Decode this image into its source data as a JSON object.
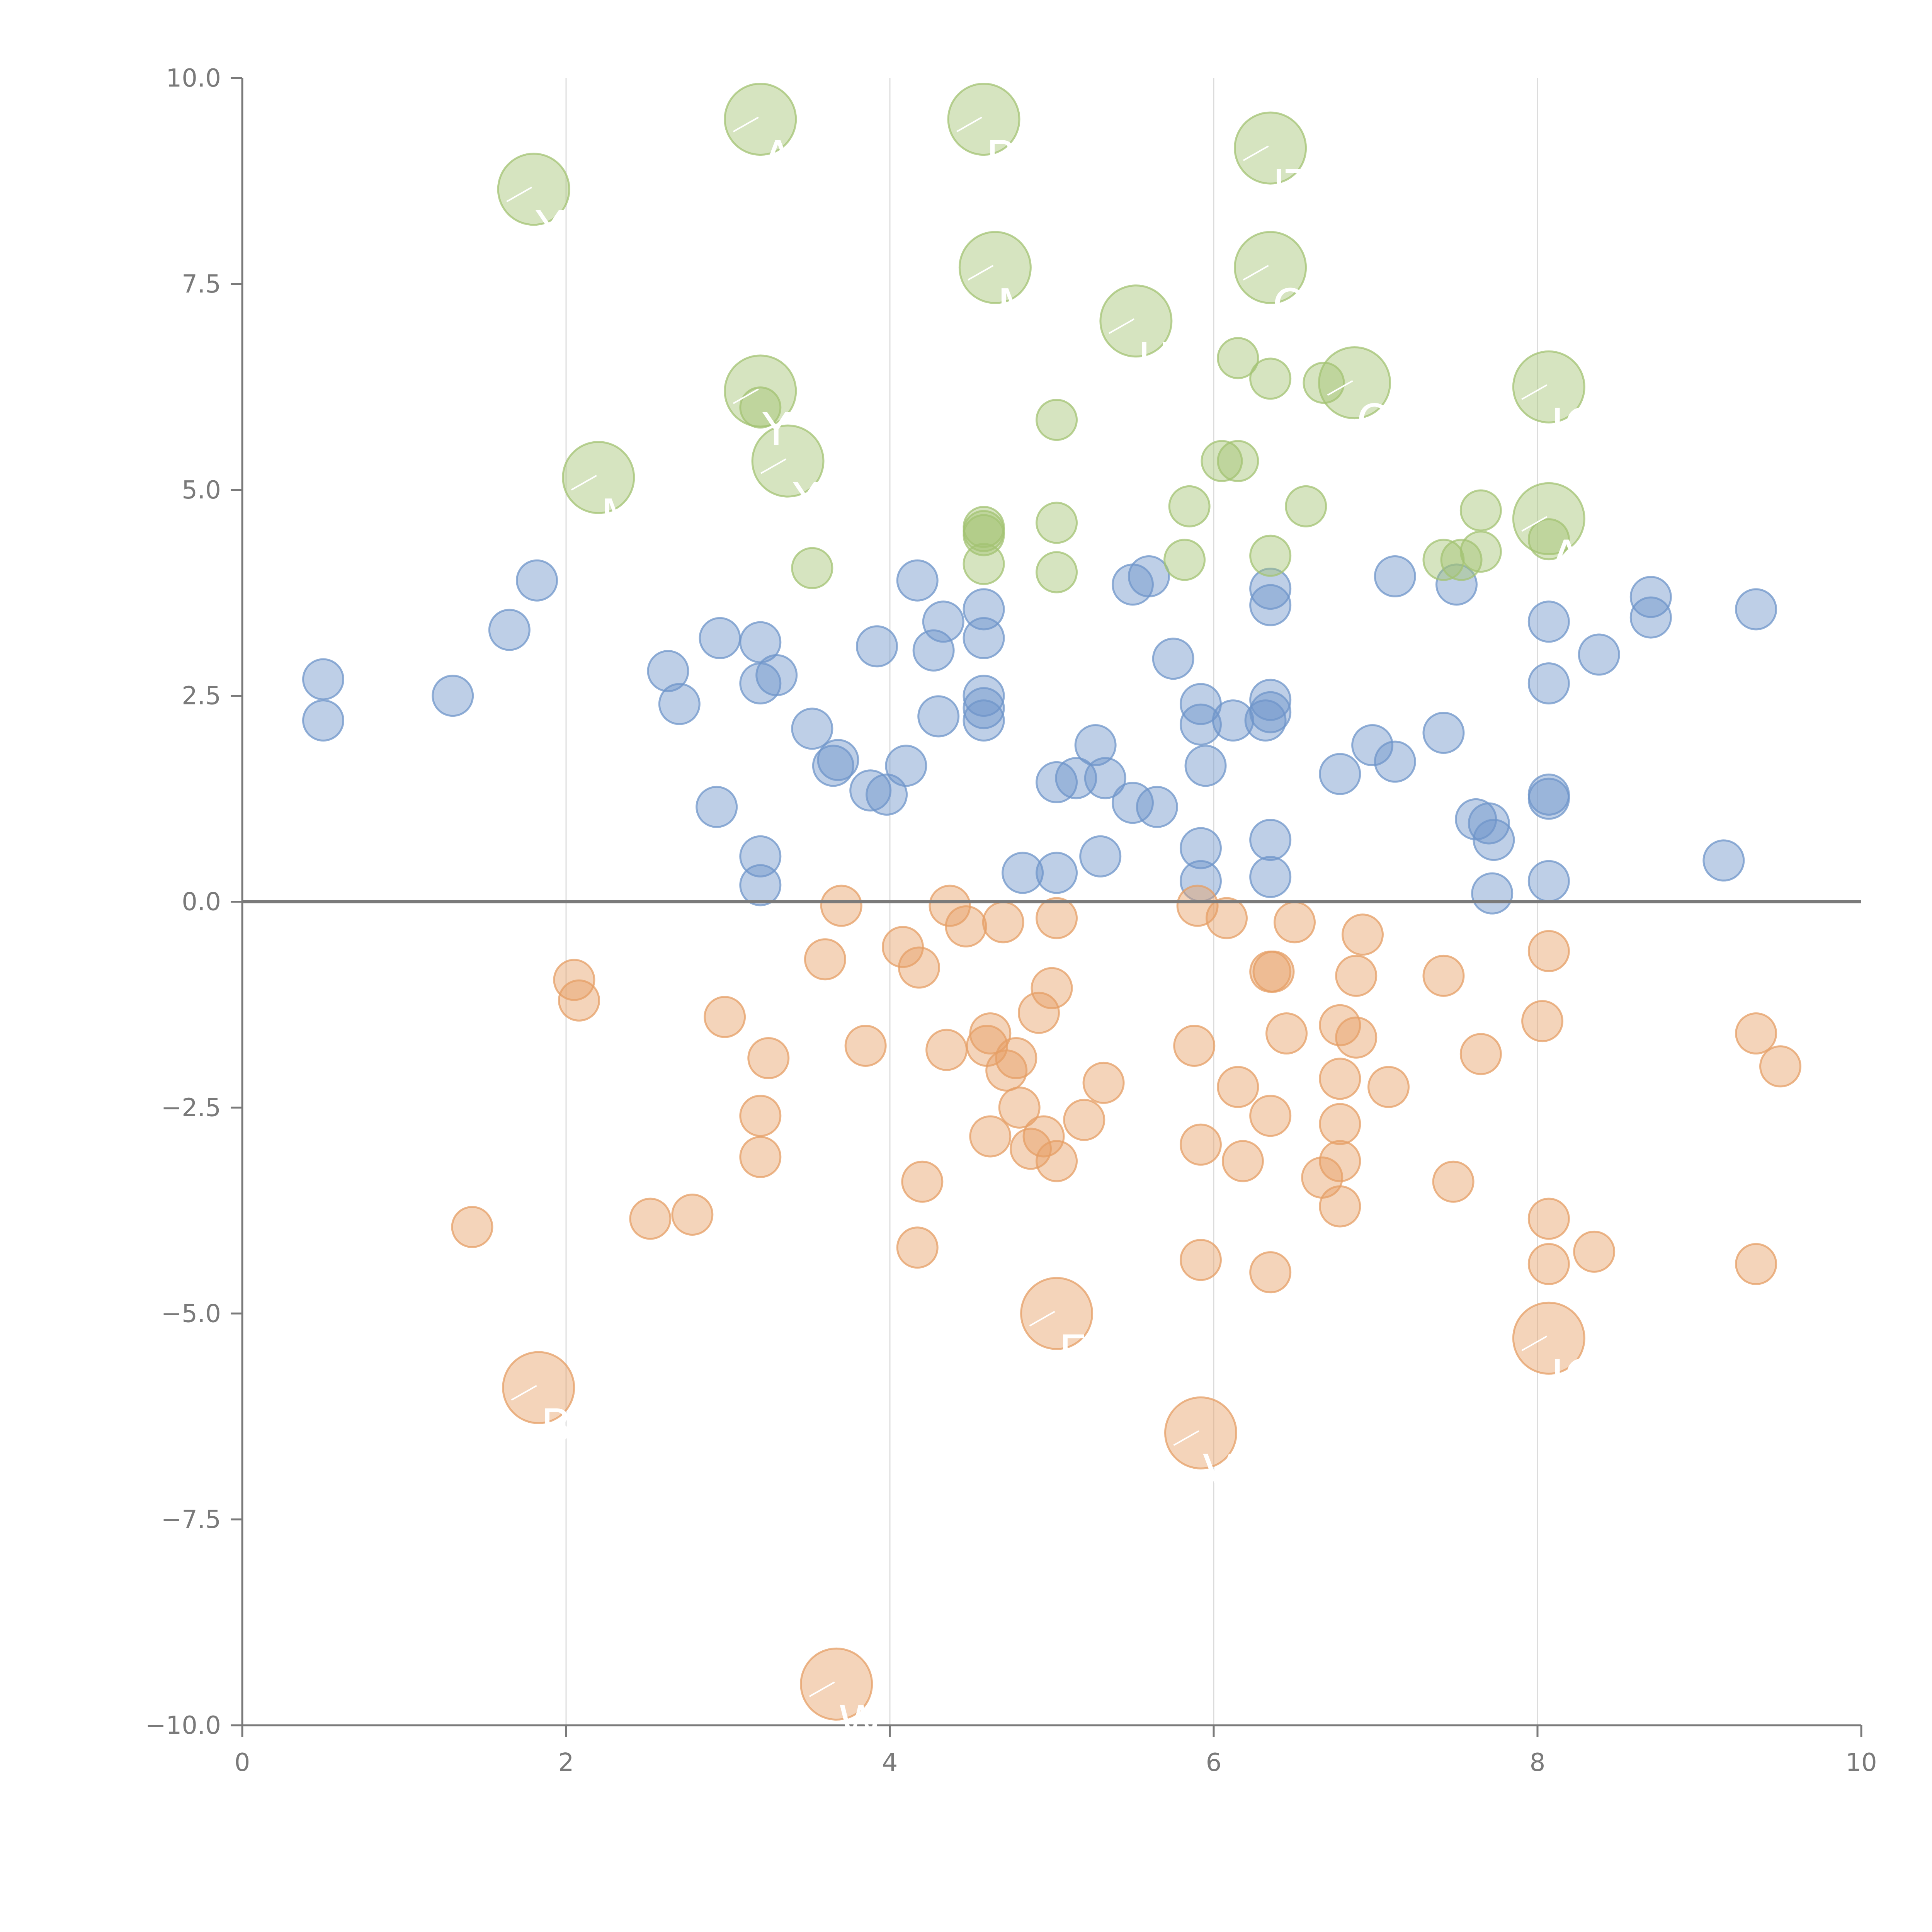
{
  "chart_data": {
    "type": "scatter",
    "title": "",
    "xlabel": "",
    "ylabel": "",
    "xlim": [
      0,
      10
    ],
    "ylim": [
      -10,
      10
    ],
    "xticks": [
      0,
      2,
      4,
      6,
      8,
      10
    ],
    "yticks": [
      10,
      7.5,
      5,
      2.5,
      0,
      -2.5,
      -5,
      -7.5,
      -10
    ],
    "xtick_labels": [
      "0",
      "2",
      "4",
      "6",
      "8",
      "10"
    ],
    "ytick_labels": [
      "10.0",
      "7.5",
      "5.0",
      "2.5",
      "0.0",
      "−2.5",
      "−5.0",
      "−7.5",
      "−10.0"
    ],
    "vertical_gridlines": [
      2,
      4,
      6,
      8
    ],
    "reference_line_y": 0,
    "series": [
      {
        "name": "positive-small",
        "color": "#6f95c9",
        "size": "small",
        "points": [
          [
            0.5,
            2.7
          ],
          [
            0.5,
            2.2
          ],
          [
            1.3,
            2.5
          ],
          [
            1.65,
            3.3
          ],
          [
            1.82,
            3.9
          ],
          [
            2.63,
            2.8
          ],
          [
            2.7,
            2.4
          ],
          [
            2.95,
            3.2
          ],
          [
            2.93,
            1.15
          ],
          [
            3.2,
            3.15
          ],
          [
            3.2,
            2.65
          ],
          [
            3.3,
            2.75
          ],
          [
            3.2,
            0.55
          ],
          [
            3.2,
            0.2
          ],
          [
            3.52,
            2.1
          ],
          [
            3.65,
            1.65
          ],
          [
            3.68,
            1.72
          ],
          [
            3.88,
            1.35
          ],
          [
            3.92,
            3.1
          ],
          [
            3.98,
            1.3
          ],
          [
            4.1,
            1.65
          ],
          [
            4.17,
            3.9
          ],
          [
            4.27,
            3.05
          ],
          [
            4.3,
            2.25
          ],
          [
            4.33,
            3.4
          ],
          [
            4.58,
            3.55
          ],
          [
            4.58,
            3.2
          ],
          [
            4.58,
            2.5
          ],
          [
            4.58,
            2.35
          ],
          [
            4.58,
            2.2
          ],
          [
            4.82,
            0.35
          ],
          [
            5.03,
            1.45
          ],
          [
            5.03,
            0.35
          ],
          [
            5.15,
            1.5
          ],
          [
            5.27,
            1.9
          ],
          [
            5.33,
            1.5
          ],
          [
            5.3,
            0.55
          ],
          [
            5.5,
            3.85
          ],
          [
            5.5,
            1.2
          ],
          [
            5.6,
            3.95
          ],
          [
            5.65,
            1.15
          ],
          [
            5.75,
            2.95
          ],
          [
            5.92,
            2.4
          ],
          [
            5.92,
            2.15
          ],
          [
            5.92,
            0.65
          ],
          [
            5.92,
            0.25
          ],
          [
            5.95,
            1.65
          ],
          [
            6.12,
            2.2
          ],
          [
            6.32,
            2.2
          ],
          [
            6.35,
            3.8
          ],
          [
            6.35,
            3.6
          ],
          [
            6.35,
            2.45
          ],
          [
            6.35,
            2.3
          ],
          [
            6.35,
            0.75
          ],
          [
            6.35,
            0.3
          ],
          [
            6.78,
            1.55
          ],
          [
            6.98,
            1.9
          ],
          [
            7.12,
            3.95
          ],
          [
            7.12,
            1.7
          ],
          [
            7.42,
            2.05
          ],
          [
            7.5,
            3.85
          ],
          [
            7.62,
            1.0
          ],
          [
            7.7,
            0.95
          ],
          [
            7.73,
            0.75
          ],
          [
            7.72,
            0.1
          ],
          [
            8.07,
            3.4
          ],
          [
            8.07,
            2.65
          ],
          [
            8.07,
            1.3
          ],
          [
            8.07,
            1.25
          ],
          [
            8.07,
            0.25
          ],
          [
            8.38,
            3.0
          ],
          [
            8.7,
            3.7
          ],
          [
            8.7,
            3.45
          ],
          [
            9.15,
            0.5
          ],
          [
            9.35,
            3.55
          ]
        ]
      },
      {
        "name": "negative-small",
        "color": "#e69f66",
        "size": "small",
        "points": [
          [
            1.42,
            -3.95
          ],
          [
            2.05,
            -0.95
          ],
          [
            2.08,
            -1.2
          ],
          [
            2.52,
            -3.85
          ],
          [
            2.78,
            -3.8
          ],
          [
            2.98,
            -1.4
          ],
          [
            3.2,
            -2.6
          ],
          [
            3.2,
            -3.1
          ],
          [
            3.25,
            -1.9
          ],
          [
            3.6,
            -0.7
          ],
          [
            3.7,
            -0.05
          ],
          [
            3.85,
            -1.75
          ],
          [
            4.08,
            -0.55
          ],
          [
            4.18,
            -0.8
          ],
          [
            4.17,
            -4.2
          ],
          [
            4.2,
            -3.4
          ],
          [
            4.35,
            -1.8
          ],
          [
            4.37,
            -0.05
          ],
          [
            4.47,
            -0.3
          ],
          [
            4.6,
            -1.75
          ],
          [
            4.62,
            -1.6
          ],
          [
            4.62,
            -2.85
          ],
          [
            4.7,
            -0.25
          ],
          [
            4.72,
            -2.05
          ],
          [
            4.78,
            -1.9
          ],
          [
            4.8,
            -2.5
          ],
          [
            4.87,
            -3.0
          ],
          [
            4.92,
            -1.35
          ],
          [
            4.95,
            -2.85
          ],
          [
            5.0,
            -1.05
          ],
          [
            5.03,
            -0.2
          ],
          [
            5.03,
            -3.15
          ],
          [
            5.2,
            -2.65
          ],
          [
            5.32,
            -2.2
          ],
          [
            5.88,
            -1.75
          ],
          [
            5.9,
            -0.05
          ],
          [
            5.92,
            -2.95
          ],
          [
            5.92,
            -4.35
          ],
          [
            6.08,
            -0.2
          ],
          [
            6.15,
            -2.25
          ],
          [
            6.18,
            -3.15
          ],
          [
            6.35,
            -0.85
          ],
          [
            6.37,
            -0.85
          ],
          [
            6.35,
            -2.6
          ],
          [
            6.35,
            -4.5
          ],
          [
            6.45,
            -1.6
          ],
          [
            6.5,
            -0.25
          ],
          [
            6.67,
            -3.35
          ],
          [
            6.78,
            -1.5
          ],
          [
            6.78,
            -2.15
          ],
          [
            6.78,
            -2.7
          ],
          [
            6.78,
            -3.15
          ],
          [
            6.78,
            -3.7
          ],
          [
            6.88,
            -0.9
          ],
          [
            6.88,
            -1.65
          ],
          [
            6.92,
            -0.4
          ],
          [
            7.08,
            -2.25
          ],
          [
            7.42,
            -0.9
          ],
          [
            7.48,
            -3.4
          ],
          [
            7.65,
            -1.85
          ],
          [
            8.03,
            -1.45
          ],
          [
            8.07,
            -0.6
          ],
          [
            8.07,
            -3.85
          ],
          [
            8.07,
            -4.4
          ],
          [
            8.35,
            -4.25
          ],
          [
            9.35,
            -1.6
          ],
          [
            9.35,
            -4.4
          ],
          [
            9.5,
            -2.0
          ]
        ]
      },
      {
        "name": "positive-medium",
        "color": "#a3c373",
        "size": "small",
        "points": [
          [
            3.2,
            6.0
          ],
          [
            3.52,
            4.05
          ],
          [
            4.58,
            4.55
          ],
          [
            4.58,
            4.5
          ],
          [
            4.58,
            4.45
          ],
          [
            4.58,
            4.1
          ],
          [
            5.03,
            5.85
          ],
          [
            5.03,
            4.6
          ],
          [
            5.03,
            4.0
          ],
          [
            5.82,
            4.15
          ],
          [
            5.85,
            4.8
          ],
          [
            6.05,
            5.35
          ],
          [
            6.15,
            5.35
          ],
          [
            6.15,
            6.6
          ],
          [
            6.35,
            6.35
          ],
          [
            6.35,
            4.2
          ],
          [
            6.57,
            4.8
          ],
          [
            6.68,
            6.3
          ],
          [
            7.42,
            4.15
          ],
          [
            7.53,
            4.15
          ],
          [
            7.65,
            4.75
          ],
          [
            7.65,
            4.25
          ],
          [
            8.07,
            4.4
          ]
        ]
      },
      {
        "name": "labeled-large-green",
        "color": "#a3c373",
        "size": "large",
        "points": [
          {
            "x": 1.8,
            "y": 8.65,
            "label": "Y"
          },
          {
            "x": 2.2,
            "y": 5.15,
            "label": "M"
          },
          {
            "x": 3.2,
            "y": 9.5,
            "label": "AG"
          },
          {
            "x": 3.2,
            "y": 6.2,
            "label": "Y"
          },
          {
            "x": 3.37,
            "y": 5.35,
            "label": "XB"
          },
          {
            "x": 4.58,
            "y": 9.5,
            "label": "BB"
          },
          {
            "x": 4.65,
            "y": 7.7,
            "label": "MX"
          },
          {
            "x": 5.52,
            "y": 7.05,
            "label": "UA"
          },
          {
            "x": 6.35,
            "y": 9.15,
            "label": "JT"
          },
          {
            "x": 6.35,
            "y": 7.7,
            "label": "O"
          },
          {
            "x": 6.87,
            "y": 6.3,
            "label": "OC"
          },
          {
            "x": 8.07,
            "y": 6.25,
            "label": "IC"
          },
          {
            "x": 8.07,
            "y": 4.65,
            "label": "AA"
          }
        ]
      },
      {
        "name": "labeled-large-orange",
        "color": "#e69f66",
        "size": "large",
        "points": [
          {
            "x": 1.83,
            "y": -5.9,
            "label": "B"
          },
          {
            "x": 3.67,
            "y": -9.5,
            "label": "W"
          },
          {
            "x": 5.03,
            "y": -5.0,
            "label": "E"
          },
          {
            "x": 5.92,
            "y": -6.45,
            "label": "V"
          },
          {
            "x": 8.07,
            "y": -5.3,
            "label": "IC"
          }
        ]
      }
    ]
  }
}
